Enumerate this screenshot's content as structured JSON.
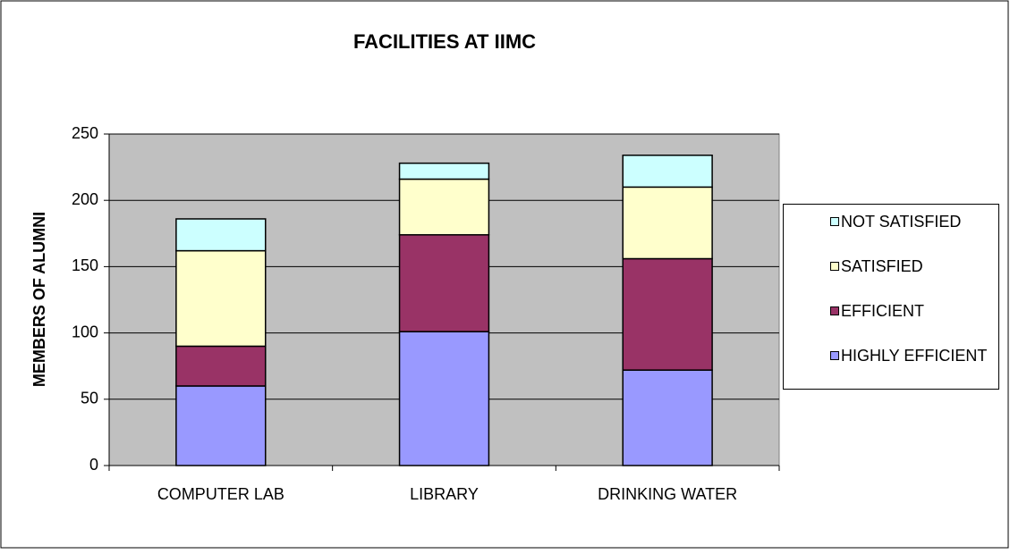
{
  "chart_data": {
    "type": "stacked_bar",
    "title": "FACILITIES AT IIMC",
    "y_label": "MEMBERS OF ALUMNI",
    "categories": [
      "COMPUTER LAB",
      "LIBRARY",
      "DRINKING WATER"
    ],
    "series": [
      {
        "name": "HIGHLY EFFICIENT",
        "color": "#9999ff",
        "values": [
          60,
          101,
          72
        ]
      },
      {
        "name": "EFFICIENT",
        "color": "#993366",
        "values": [
          30,
          73,
          84
        ]
      },
      {
        "name": "SATISFIED",
        "color": "#ffffcc",
        "values": [
          72,
          42,
          54
        ]
      },
      {
        "name": "NOT SATISFIED",
        "color": "#ccffff",
        "values": [
          24,
          12,
          24
        ]
      }
    ],
    "ylim": [
      0,
      250
    ],
    "yticks": [
      0,
      50,
      100,
      150,
      200,
      250
    ],
    "grid": true,
    "legend": "right"
  }
}
